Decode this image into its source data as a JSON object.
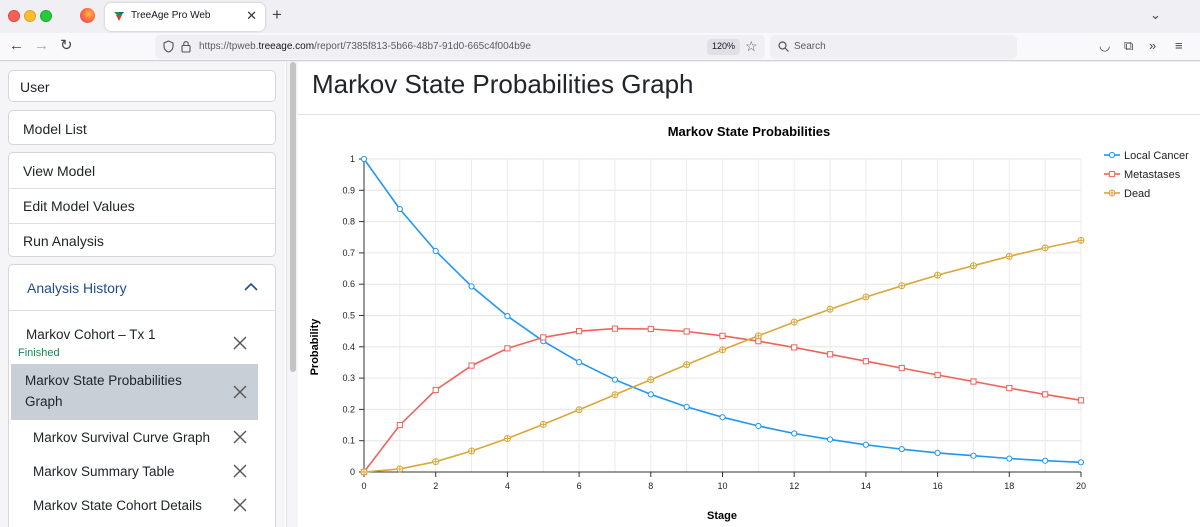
{
  "browser": {
    "tab_title": "TreeAge Pro Web",
    "url_prefix": "https://tpweb.",
    "url_domain": "treeage.com",
    "url_path": "/report/7385f813-5b66-48b7-91d0-665c4f004b9e",
    "zoom": "120%",
    "search_placeholder": "Search"
  },
  "sidebar": {
    "top_items": [
      "User",
      "Model List"
    ],
    "model_items": [
      "View Model",
      "Edit Model Values",
      "Run Analysis"
    ],
    "analysis_history": {
      "title": "Analysis History",
      "entries": [
        {
          "label": "Markov Cohort – Tx 1",
          "status": "Finished"
        },
        {
          "label": "Markov State Probabilities Graph",
          "selected": true
        },
        {
          "label": "Markov Survival Curve Graph"
        },
        {
          "label": "Markov Summary Table"
        },
        {
          "label": "Markov State Cohort Details"
        }
      ]
    }
  },
  "main": {
    "page_title": "Markov State Probabilities Graph"
  },
  "colors": {
    "local_cancer": "#2196f3",
    "metastases": "#f0625a",
    "dead": "#d9a73a",
    "selected_row": "#c9cfd6",
    "accent": "#1d4d8c"
  },
  "chart_data": {
    "type": "line",
    "title": "Markov State Probabilities",
    "xlabel": "Stage",
    "ylabel": "Probability",
    "xlim": [
      0,
      20
    ],
    "ylim": [
      0,
      1
    ],
    "x_ticks": [
      0,
      2,
      4,
      6,
      8,
      10,
      12,
      14,
      16,
      18,
      20
    ],
    "y_ticks": [
      0,
      0.1,
      0.2,
      0.3,
      0.4,
      0.5,
      0.6,
      0.7,
      0.8,
      0.9,
      1
    ],
    "grid": true,
    "legend_position": "top-right",
    "x": [
      0,
      1,
      2,
      3,
      4,
      5,
      6,
      7,
      8,
      9,
      10,
      11,
      12,
      13,
      14,
      15,
      16,
      17,
      18,
      19,
      20
    ],
    "series": [
      {
        "name": "Local Cancer",
        "color": "#2196f3",
        "marker": "circle",
        "values": [
          1.0,
          0.84,
          0.706,
          0.593,
          0.498,
          0.418,
          0.351,
          0.295,
          0.248,
          0.208,
          0.175,
          0.147,
          0.123,
          0.104,
          0.087,
          0.073,
          0.061,
          0.052,
          0.043,
          0.036,
          0.031
        ]
      },
      {
        "name": "Metastases",
        "color": "#f0625a",
        "marker": "square",
        "values": [
          0.0,
          0.15,
          0.262,
          0.34,
          0.395,
          0.43,
          0.45,
          0.458,
          0.457,
          0.449,
          0.435,
          0.418,
          0.398,
          0.376,
          0.354,
          0.332,
          0.31,
          0.289,
          0.268,
          0.248,
          0.229
        ]
      },
      {
        "name": "Dead",
        "color": "#d9a73a",
        "marker": "cross",
        "values": [
          0.0,
          0.01,
          0.033,
          0.067,
          0.107,
          0.152,
          0.199,
          0.247,
          0.295,
          0.343,
          0.39,
          0.435,
          0.479,
          0.52,
          0.559,
          0.595,
          0.629,
          0.659,
          0.689,
          0.716,
          0.74
        ]
      }
    ]
  }
}
